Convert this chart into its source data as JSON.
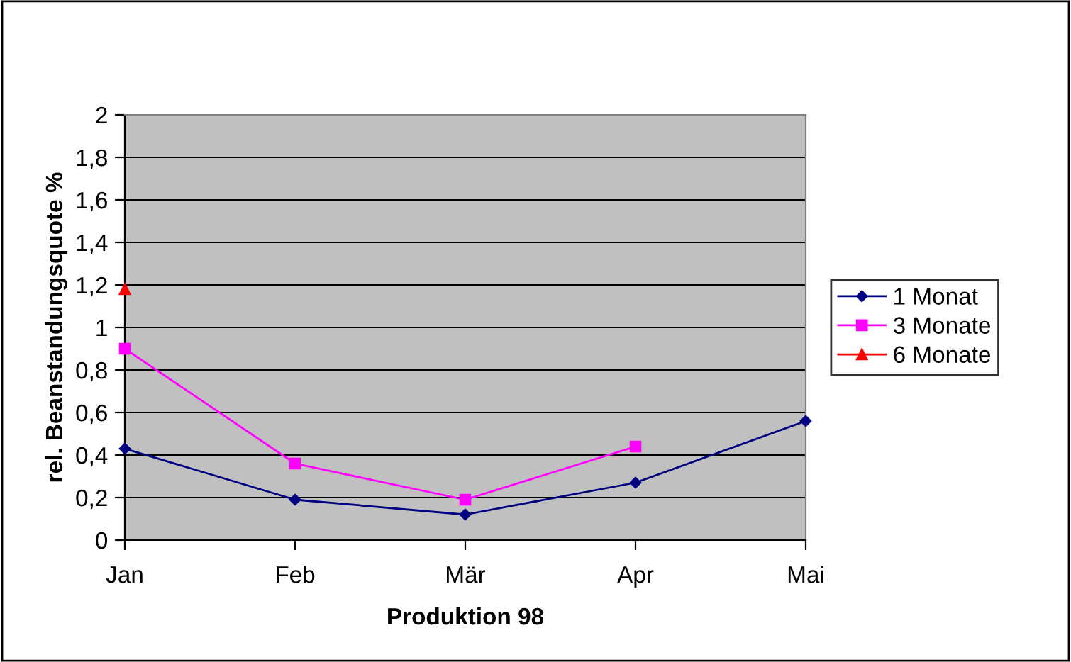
{
  "chart_data": {
    "type": "line",
    "xlabel": "Produktion 98",
    "ylabel": "rel. Beanstandungsquote %",
    "categories": [
      "Jan",
      "Feb",
      "Mär",
      "Apr",
      "Mai"
    ],
    "series": [
      {
        "name": "1 Monat",
        "color": "#000080",
        "marker": "diamond",
        "values": [
          0.43,
          0.19,
          0.12,
          0.27,
          0.56
        ]
      },
      {
        "name": "3 Monate",
        "color": "#ff00ff",
        "marker": "square",
        "values": [
          0.9,
          0.36,
          0.19,
          0.44,
          null
        ]
      },
      {
        "name": "6 Monate",
        "color": "#ff0000",
        "marker": "triangle",
        "values": [
          1.18,
          null,
          null,
          null,
          null
        ]
      }
    ],
    "ylim": [
      0,
      2
    ],
    "yticks": [
      0,
      {
        "value": 0.2,
        "label": "0,2"
      },
      {
        "value": 0.4,
        "label": "0,4"
      },
      {
        "value": 0.6,
        "label": "0,6"
      },
      {
        "value": 0.8,
        "label": "0,8"
      },
      1,
      {
        "value": 1.2,
        "label": "1,2"
      },
      {
        "value": 1.4,
        "label": "1,4"
      },
      {
        "value": 1.6,
        "label": "1,6"
      },
      {
        "value": 1.8,
        "label": "1,8"
      },
      2
    ],
    "grid": "y",
    "legend": "right",
    "line_style": "solid"
  }
}
